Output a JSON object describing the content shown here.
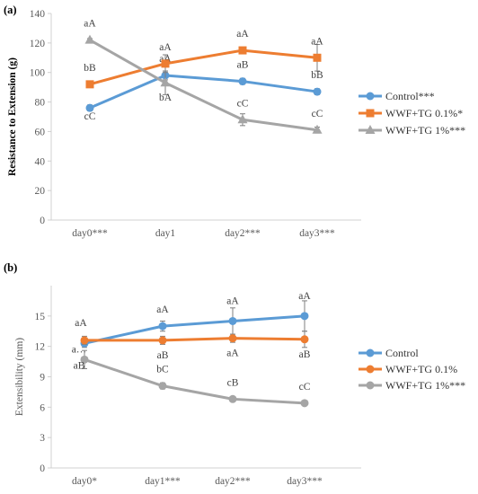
{
  "chart_data": [
    {
      "panel_label": "(a)",
      "type": "line",
      "categories": [
        "day0***",
        "day1",
        "day2***",
        "day3***"
      ],
      "ylabel": "Resistance to Extension (g)",
      "xlabel": "",
      "ylim": [
        0,
        140
      ],
      "yticks": [
        0,
        20,
        40,
        60,
        80,
        100,
        120,
        140
      ],
      "grid": false,
      "legend_position": "right",
      "series": [
        {
          "name": "Control***",
          "color": "#5b9bd5",
          "marker": "circle",
          "values": [
            76,
            98,
            94,
            87
          ],
          "errors": [
            2,
            3,
            2,
            2
          ],
          "labels": [
            "cC",
            "aA",
            "aB",
            "bB"
          ]
        },
        {
          "name": "WWF+TG 0.1%*",
          "color": "#ed7d31",
          "marker": "square",
          "values": [
            92,
            106,
            115,
            110
          ],
          "errors": [
            2,
            6,
            2,
            9
          ],
          "labels": [
            "bB",
            "aA",
            "aA",
            "aA"
          ]
        },
        {
          "name": "WWF+TG 1%***",
          "color": "#a5a5a5",
          "marker": "triangle",
          "values": [
            122,
            93,
            68,
            61
          ],
          "errors": [
            1,
            8,
            4,
            2
          ],
          "labels": [
            "aA",
            "bA",
            "cC",
            "cC"
          ]
        }
      ]
    },
    {
      "panel_label": "(b)",
      "type": "line",
      "categories": [
        "day0*",
        "day1***",
        "day2***",
        "day3***"
      ],
      "ylabel": "Extensibility (mm)",
      "xlabel": "",
      "ylim": [
        0,
        18
      ],
      "yticks": [
        0,
        3,
        6,
        9,
        12,
        15
      ],
      "grid": false,
      "legend_position": "right",
      "series": [
        {
          "name": "Control",
          "color": "#5b9bd5",
          "marker": "circle",
          "values": [
            12.3,
            14.0,
            14.5,
            15.0
          ],
          "errors": [
            0.4,
            0.5,
            1.3,
            1.5
          ],
          "labels": [
            "a…",
            "aA",
            "aA",
            "aA"
          ]
        },
        {
          "name": "WWF+TG 0.1%",
          "color": "#ed7d31",
          "marker": "circle",
          "values": [
            12.6,
            12.6,
            12.8,
            12.7
          ],
          "errors": [
            0.4,
            0.4,
            0.4,
            0.8
          ],
          "labels": [
            "aA",
            "aB",
            "aA",
            "aB"
          ]
        },
        {
          "name": "WWF+TG 1%***",
          "color": "#a5a5a5",
          "marker": "circle",
          "values": [
            10.7,
            8.1,
            6.8,
            6.4
          ],
          "errors": [
            0.9,
            0.3,
            0.2,
            0.2
          ],
          "labels": [
            "aB",
            "bC",
            "cB",
            "cC"
          ]
        }
      ]
    }
  ]
}
